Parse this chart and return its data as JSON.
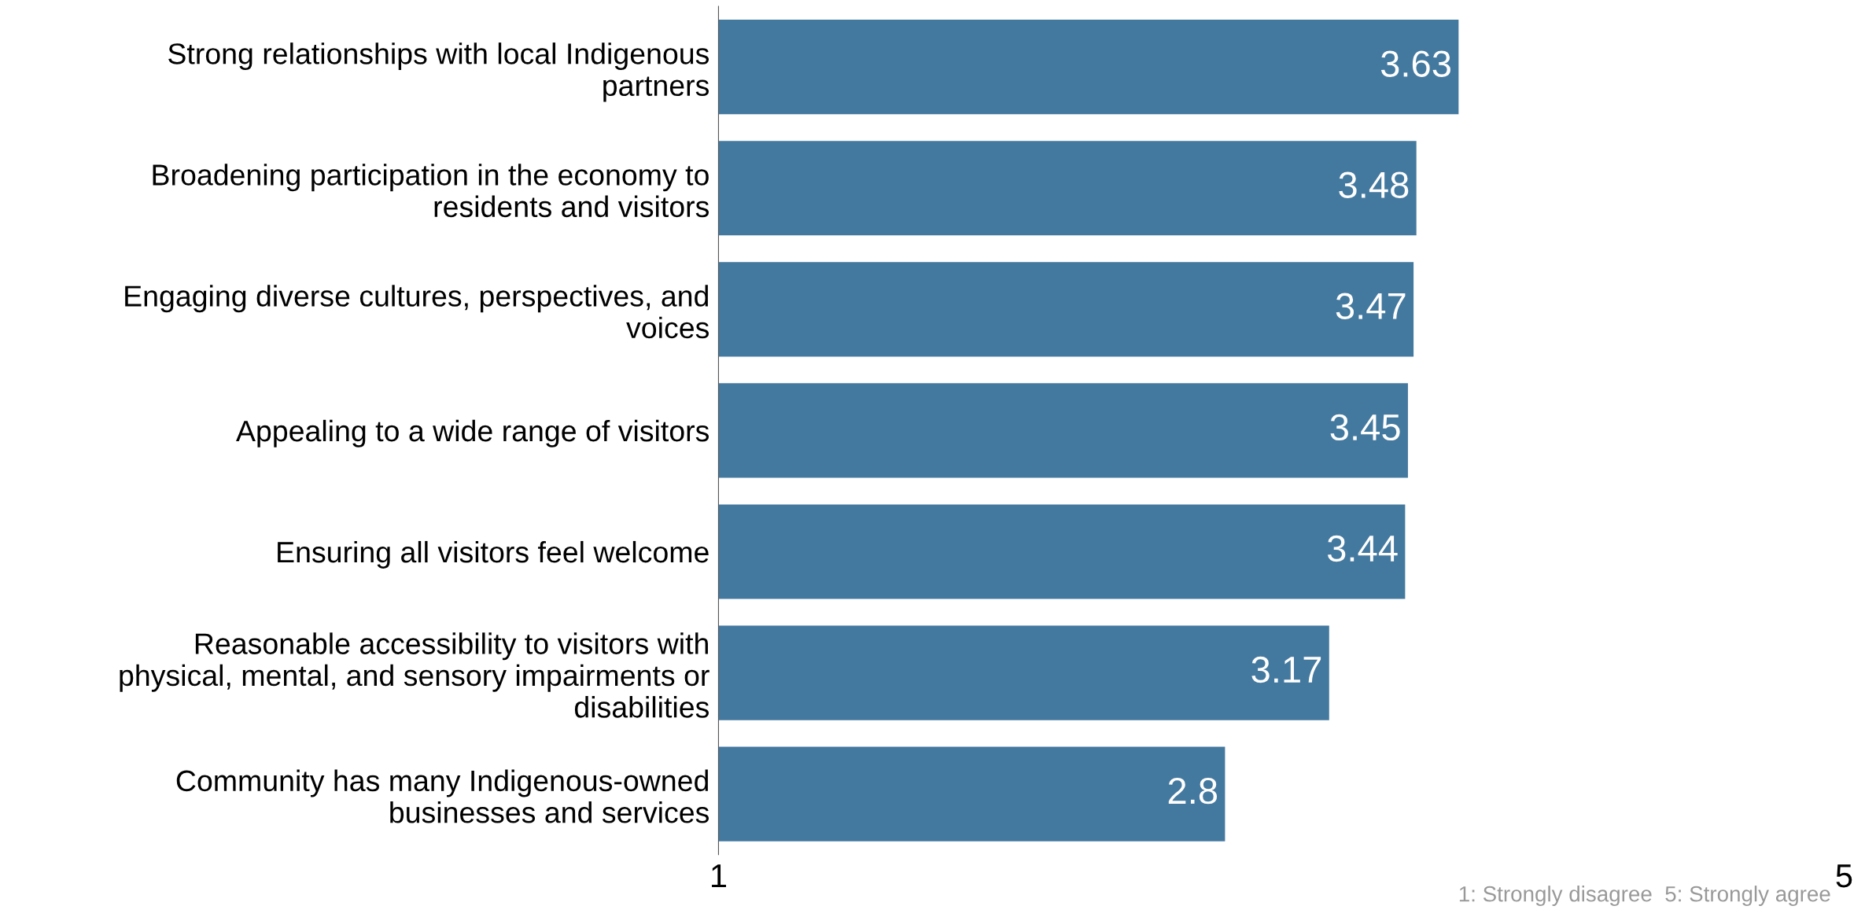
{
  "chart_data": {
    "type": "bar",
    "orientation": "horizontal",
    "categories": [
      "Strong relationships with local Indigenous\npartners",
      "Broadening participation in the economy to\nresidents and visitors",
      "Engaging diverse cultures, perspectives, and\nvoices",
      "Appealing to a wide range of visitors",
      "Ensuring all visitors feel welcome",
      "Reasonable accessibility to visitors with\nphysical, mental, and sensory impairments or\ndisabilities",
      "Community has many Indigenous-owned\nbusinesses and services"
    ],
    "values": [
      3.63,
      3.48,
      3.47,
      3.45,
      3.44,
      3.17,
      2.8
    ],
    "color": "#44799f",
    "data_labels": true,
    "xlim": [
      1,
      5
    ],
    "xticks": [
      1,
      5
    ],
    "grid": false,
    "legend": false,
    "annotations": [
      "1: Strongly disagree  5: Strongly agree"
    ]
  }
}
